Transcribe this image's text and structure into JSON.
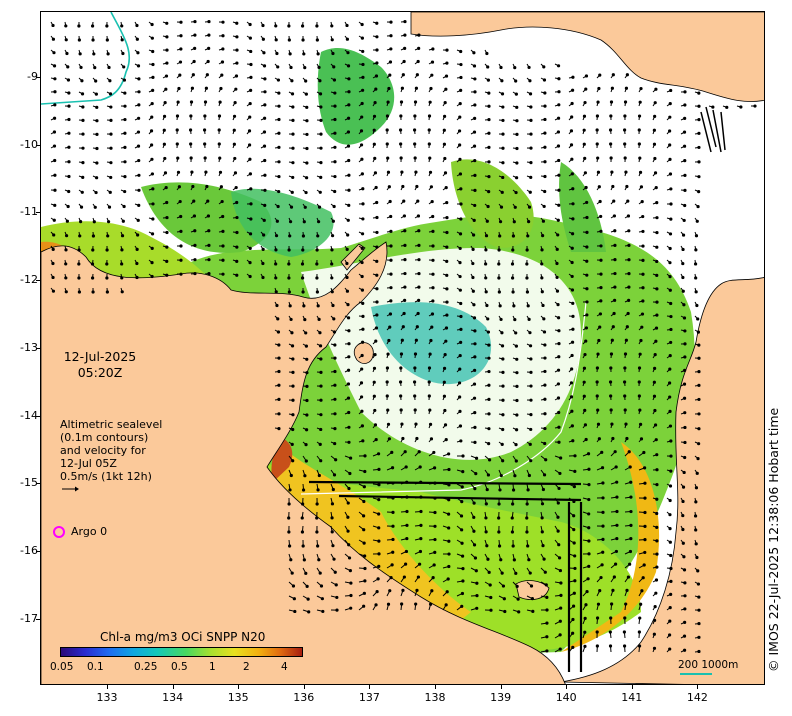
{
  "map": {
    "timestamp_date": "12-Jul-2025",
    "timestamp_time": "05:20Z",
    "altimetry_lines": [
      "Altimetric sealevel",
      "(0.1m contours)",
      "and velocity for",
      "12-Jul 05Z",
      "0.5m/s (1kt 12h)"
    ],
    "argo_label": "Argo 0",
    "colorbar_title": "Chl-a mg/m3 OCi SNPP N20",
    "colorbar_ticks": [
      "0.05",
      "0.1",
      "0.25",
      "0.5",
      "1",
      "2",
      "4"
    ],
    "scale_label": "200  1000m",
    "credit": "© IMOS 22-Jul-2025 12:38:06 Hobart time",
    "x_ticks": [
      "133",
      "134",
      "135",
      "136",
      "137",
      "138",
      "139",
      "140",
      "141",
      "142"
    ],
    "y_ticks": [
      "-9",
      "-10",
      "-11",
      "-12",
      "-13",
      "-14",
      "-15",
      "-16",
      "-17"
    ],
    "colors": {
      "land": "#fbc99a",
      "ocean_nodata": "#ffffff",
      "argo_marker": "#ff00ff",
      "isobath": "#19c0b0"
    },
    "icons": [
      "velocity-arrow-icon",
      "argo-marker-icon"
    ]
  }
}
